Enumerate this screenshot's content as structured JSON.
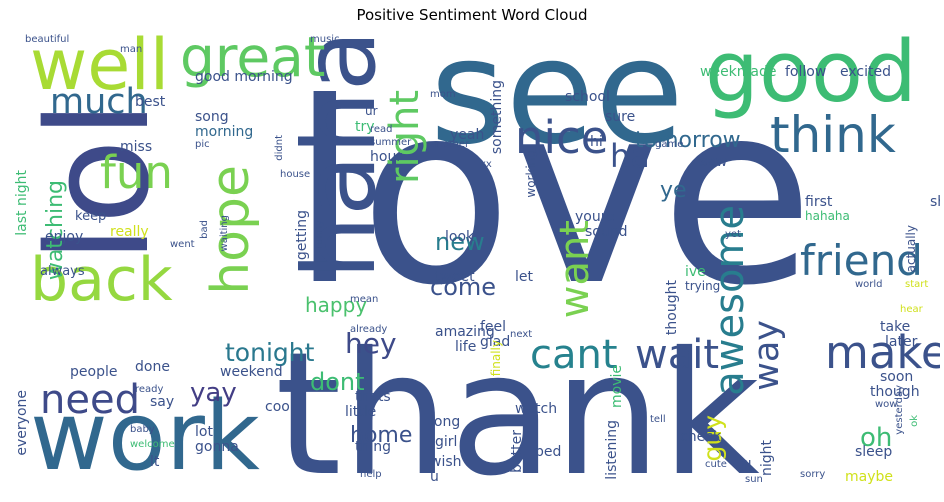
{
  "title": "Positive Sentiment Word Cloud",
  "words": [
    {
      "text": "love",
      "color": "#3b528b"
    },
    {
      "text": "thank",
      "color": "#3b528b"
    },
    {
      "text": "see",
      "color": "#31688e"
    },
    {
      "text": "lol",
      "color": "#3e4a89"
    },
    {
      "text": "haha",
      "color": "#3b528b"
    },
    {
      "text": "good",
      "color": "#3dbc74"
    },
    {
      "text": "work",
      "color": "#31688e"
    },
    {
      "text": "well",
      "color": "#a8db34"
    },
    {
      "text": "back",
      "color": "#95d840"
    },
    {
      "text": "great",
      "color": "#5ec962"
    },
    {
      "text": "think",
      "color": "#31688e"
    },
    {
      "text": "hope",
      "color": "#7ad151"
    },
    {
      "text": "fun",
      "color": "#7ad151"
    },
    {
      "text": "much",
      "color": "#31688e"
    },
    {
      "text": "nice",
      "color": "#3b528b"
    },
    {
      "text": "right",
      "color": "#5ec962"
    },
    {
      "text": "friend",
      "color": "#31688e"
    },
    {
      "text": "awesome",
      "color": "#287d8e"
    },
    {
      "text": "want",
      "color": "#7ad151"
    },
    {
      "text": "need",
      "color": "#3e4a89"
    },
    {
      "text": "make",
      "color": "#3b528b"
    },
    {
      "text": "cant",
      "color": "#26828e"
    },
    {
      "text": "wait",
      "color": "#3b528b"
    },
    {
      "text": "way",
      "color": "#3b528b"
    },
    {
      "text": "ha",
      "color": "#3b528b"
    },
    {
      "text": "tomorrow",
      "color": "#31688e"
    },
    {
      "text": "watching",
      "color": "#3dbc74"
    },
    {
      "text": "happy",
      "color": "#4ac16d"
    },
    {
      "text": "hey",
      "color": "#3e4a89"
    },
    {
      "text": "tonight",
      "color": "#2a788e"
    },
    {
      "text": "come",
      "color": "#3b528b"
    },
    {
      "text": "new",
      "color": "#287d8e"
    },
    {
      "text": "yay",
      "color": "#433e85"
    },
    {
      "text": "dont",
      "color": "#3dbc74"
    },
    {
      "text": "home",
      "color": "#3b528b"
    },
    {
      "text": "oh",
      "color": "#3dbc74"
    },
    {
      "text": "guy",
      "color": "#d0e11c"
    },
    {
      "text": "ye",
      "color": "#31688e"
    },
    {
      "text": "good morning",
      "color": "#3b528b"
    },
    {
      "text": "morning",
      "color": "#31688e"
    },
    {
      "text": "song",
      "color": "#3b528b"
    },
    {
      "text": "miss",
      "color": "#3b528b"
    },
    {
      "text": "best",
      "color": "#3b528b"
    },
    {
      "text": "school",
      "color": "#3b528b"
    },
    {
      "text": "sure",
      "color": "#3b528b"
    },
    {
      "text": "follow",
      "color": "#3b528b"
    },
    {
      "text": "excited",
      "color": "#3b528b"
    },
    {
      "text": "weekmade",
      "color": "#3dbc74"
    },
    {
      "text": "beautiful",
      "color": "#3b528b"
    },
    {
      "text": "man",
      "color": "#3b528b"
    },
    {
      "text": "music",
      "color": "#3b528b"
    },
    {
      "text": "ur",
      "color": "#3b528b"
    },
    {
      "text": "pic",
      "color": "#3b528b"
    },
    {
      "text": "didnt",
      "color": "#3b528b"
    },
    {
      "text": "last night",
      "color": "#3dbc74"
    },
    {
      "text": "keep",
      "color": "#3b528b"
    },
    {
      "text": "enjoy",
      "color": "#3b528b"
    },
    {
      "text": "really",
      "color": "#d0e11c"
    },
    {
      "text": "went",
      "color": "#3b528b"
    },
    {
      "text": "bad",
      "color": "#3b528b"
    },
    {
      "text": "waiting",
      "color": "#3b528b"
    },
    {
      "text": "always",
      "color": "#3b528b"
    },
    {
      "text": "try",
      "color": "#3dbc74"
    },
    {
      "text": "hour",
      "color": "#3b528b"
    },
    {
      "text": "yeah",
      "color": "#3b528b"
    },
    {
      "text": "hi",
      "color": "#3b528b"
    },
    {
      "text": "saw",
      "color": "#3b528b"
    },
    {
      "text": "show",
      "color": "#3b528b"
    },
    {
      "text": "first",
      "color": "#3b528b"
    },
    {
      "text": "hahaha",
      "color": "#3dbc74"
    },
    {
      "text": "actually",
      "color": "#3b528b"
    },
    {
      "text": "something",
      "color": "#3b528b"
    },
    {
      "text": "another",
      "color": "#3b528b"
    },
    {
      "text": "working",
      "color": "#3b528b"
    },
    {
      "text": "yet",
      "color": "#3b528b"
    },
    {
      "text": "world",
      "color": "#3b528b"
    },
    {
      "text": "start",
      "color": "#d0e11c"
    },
    {
      "text": "take",
      "color": "#3b528b"
    },
    {
      "text": "later",
      "color": "#3b528b"
    },
    {
      "text": "getting",
      "color": "#3b528b"
    },
    {
      "text": "funny",
      "color": "#3b528b"
    },
    {
      "text": "look",
      "color": "#3b528b"
    },
    {
      "text": "tweet",
      "color": "#3b528b"
    },
    {
      "text": "youre",
      "color": "#3b528b"
    },
    {
      "text": "sound",
      "color": "#3b528b"
    },
    {
      "text": "ive",
      "color": "#3dbc74"
    },
    {
      "text": "trying",
      "color": "#3b528b"
    },
    {
      "text": "let",
      "color": "#3b528b"
    },
    {
      "text": "glad",
      "color": "#3b528b"
    },
    {
      "text": "thought",
      "color": "#3b528b"
    },
    {
      "text": "feel",
      "color": "#3b528b"
    },
    {
      "text": "next",
      "color": "#3b528b"
    },
    {
      "text": "already",
      "color": "#3b528b"
    },
    {
      "text": "mean",
      "color": "#3b528b"
    },
    {
      "text": "amazing",
      "color": "#3b528b"
    },
    {
      "text": "life",
      "color": "#3b528b"
    },
    {
      "text": "finally",
      "color": "#d0e11c"
    },
    {
      "text": "movie",
      "color": "#3dbc74"
    },
    {
      "text": "weekend",
      "color": "#3b528b"
    },
    {
      "text": "people",
      "color": "#3b528b"
    },
    {
      "text": "done",
      "color": "#3b528b"
    },
    {
      "text": "everyone",
      "color": "#3b528b"
    },
    {
      "text": "ready",
      "color": "#3b528b"
    },
    {
      "text": "say",
      "color": "#3b528b"
    },
    {
      "text": "cool",
      "color": "#3b528b"
    },
    {
      "text": "thats",
      "color": "#3b528b"
    },
    {
      "text": "little",
      "color": "#3b528b"
    },
    {
      "text": "thing",
      "color": "#3b528b"
    },
    {
      "text": "lot",
      "color": "#3b528b"
    },
    {
      "text": "gonna",
      "color": "#3b528b"
    },
    {
      "text": "welcome",
      "color": "#3dbc74"
    },
    {
      "text": "baby",
      "color": "#3b528b"
    },
    {
      "text": "lt",
      "color": "#3b528b"
    },
    {
      "text": "help",
      "color": "#3b528b"
    },
    {
      "text": "long",
      "color": "#3b528b"
    },
    {
      "text": "girl",
      "color": "#3b528b"
    },
    {
      "text": "wish",
      "color": "#3b528b"
    },
    {
      "text": "u",
      "color": "#3b528b"
    },
    {
      "text": "watch",
      "color": "#3b528b"
    },
    {
      "text": "better",
      "color": "#3b528b"
    },
    {
      "text": "bed",
      "color": "#3b528b"
    },
    {
      "text": "listening",
      "color": "#3b528b"
    },
    {
      "text": "tell",
      "color": "#3b528b"
    },
    {
      "text": "check",
      "color": "#3b528b"
    },
    {
      "text": "cute",
      "color": "#3b528b"
    },
    {
      "text": "ill",
      "color": "#3b528b"
    },
    {
      "text": "sun",
      "color": "#3b528b"
    },
    {
      "text": "night",
      "color": "#3b528b"
    },
    {
      "text": "sleep",
      "color": "#3b528b"
    },
    {
      "text": "maybe",
      "color": "#d0e11c"
    },
    {
      "text": "sorry",
      "color": "#3b528b"
    },
    {
      "text": "though",
      "color": "#3b528b"
    },
    {
      "text": "soon",
      "color": "#3b528b"
    },
    {
      "text": "wow",
      "color": "#3b528b"
    },
    {
      "text": "yesterday",
      "color": "#3b528b"
    },
    {
      "text": "ok",
      "color": "#3dbc74"
    },
    {
      "text": "read",
      "color": "#3b528b"
    },
    {
      "text": "summer",
      "color": "#3b528b"
    },
    {
      "text": "game",
      "color": "#3b528b"
    },
    {
      "text": "house",
      "color": "#3b528b"
    },
    {
      "text": "xx",
      "color": "#3b528b"
    },
    {
      "text": "mom",
      "color": "#3b528b"
    },
    {
      "text": "hear",
      "color": "#d0e11c"
    }
  ]
}
